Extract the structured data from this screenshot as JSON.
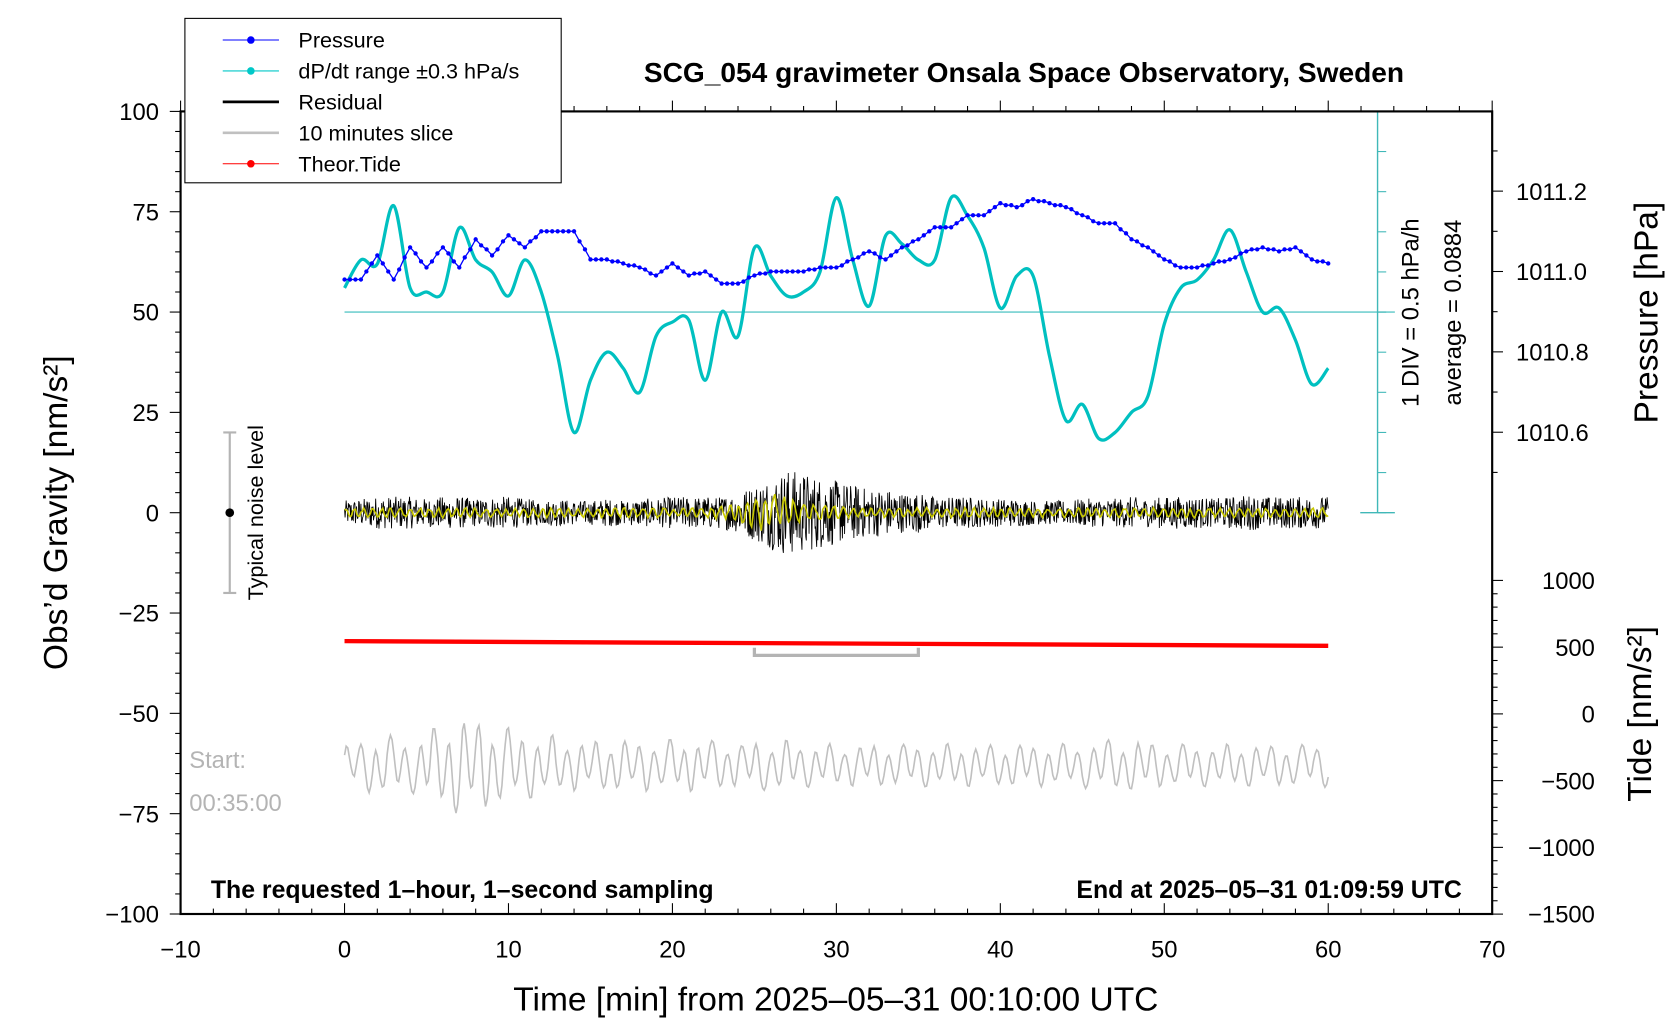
{
  "chart_data": {
    "type": "line",
    "title": "SCG_054 gravimeter Onsala Space Observatory, Sweden",
    "xlabel": "Time [min] from 2025–05–31 00:10:00 UTC",
    "ylabel_left": "Obs’d Gravity [nm/s²]",
    "ylabel_right_top": "Pressure [hPa]",
    "ylabel_right_bottom": "Tide [nm/s²]",
    "xlim": [
      -10,
      70
    ],
    "ylim_left": [
      -100,
      100
    ],
    "x_ticks": [
      -10,
      0,
      10,
      20,
      30,
      40,
      50,
      60,
      70
    ],
    "x_tick_labels": [
      "−10",
      "0",
      "10",
      "20",
      "30",
      "40",
      "50",
      "60",
      "70"
    ],
    "y_ticks_left": [
      100,
      75,
      50,
      25,
      0,
      -25,
      -50,
      -75,
      -100
    ],
    "y_tick_labels_left": [
      "100",
      "75",
      "50",
      "25",
      "0",
      "−25",
      "−50",
      "−75",
      "−100"
    ],
    "pressure_ticks": [
      1011.2,
      1011.0,
      1010.8,
      1010.6
    ],
    "pressure_tick_labels": [
      "1011.2",
      "1011.0",
      "1010.8",
      "1010.6"
    ],
    "tide_ticks": [
      1000,
      500,
      0,
      -500,
      -1000,
      -1500
    ],
    "tide_tick_labels": [
      "1000",
      "500",
      "0",
      "−500",
      "−1000",
      "−1500"
    ],
    "legend": {
      "position": "top-left",
      "entries": [
        {
          "label": "Pressure",
          "color": "#0000ff",
          "marker": true
        },
        {
          "label": "dP/dt range ±0.3 hPa/s",
          "color": "#00c8c8",
          "marker": true
        },
        {
          "label": "Residual",
          "color": "#000000",
          "marker": false
        },
        {
          "label": "10 minutes slice",
          "color": "#c0c0c0",
          "marker": false
        },
        {
          "label": "Theor.Tide",
          "color": "#ff0000",
          "marker": true
        }
      ]
    },
    "annotations": {
      "scale_div": "1 DIV = 0.5 hPa/h",
      "average": "average = 0.0884",
      "noise_level": "Typical noise level",
      "start_label": "Start:",
      "start_time": "00:35:00",
      "sampling_note": "The requested 1–hour, 1–second sampling",
      "end_note": "End at 2025–05–31 01:09:59 UTC"
    },
    "time_min": [
      0,
      1,
      2,
      3,
      4,
      5,
      6,
      7,
      8,
      9,
      10,
      11,
      12,
      13,
      14,
      15,
      16,
      17,
      18,
      19,
      20,
      21,
      22,
      23,
      24,
      25,
      26,
      27,
      28,
      29,
      30,
      31,
      32,
      33,
      34,
      35,
      36,
      37,
      38,
      39,
      40,
      41,
      42,
      43,
      44,
      45,
      46,
      47,
      48,
      49,
      50,
      51,
      52,
      53,
      54,
      55,
      56,
      57,
      58,
      59,
      60
    ],
    "series": [
      {
        "name": "Pressure",
        "units": "hPa",
        "color": "#0000ff",
        "values": [
          1010.98,
          1010.98,
          1011.04,
          1010.98,
          1011.06,
          1011.01,
          1011.06,
          1011.01,
          1011.08,
          1011.04,
          1011.09,
          1011.06,
          1011.1,
          1011.1,
          1011.1,
          1011.03,
          1011.03,
          1011.02,
          1011.01,
          1010.99,
          1011.02,
          1010.99,
          1011.0,
          1010.97,
          1010.97,
          1010.99,
          1011.0,
          1011.0,
          1011.0,
          1011.01,
          1011.01,
          1011.03,
          1011.05,
          1011.03,
          1011.06,
          1011.08,
          1011.11,
          1011.11,
          1011.14,
          1011.14,
          1011.17,
          1011.16,
          1011.18,
          1011.17,
          1011.16,
          1011.14,
          1011.12,
          1011.12,
          1011.08,
          1011.06,
          1011.03,
          1011.01,
          1011.01,
          1011.02,
          1011.03,
          1011.05,
          1011.06,
          1011.05,
          1011.06,
          1011.03,
          1011.02
        ]
      },
      {
        "name": "dP/dt",
        "units": "left-axis plot units (1 DIV = 10 = 0.5 hPa/h, 50 = average)",
        "color": "#00c8c8",
        "values": [
          56,
          63,
          62,
          76.5,
          56,
          55,
          55,
          71,
          63,
          60,
          54,
          63,
          55,
          39,
          20,
          33,
          40,
          36,
          30,
          44,
          47.5,
          48,
          33,
          50,
          44,
          66,
          59,
          54,
          55,
          60,
          78.5,
          63,
          51.5,
          69,
          67,
          63,
          63,
          78.5,
          74,
          66,
          51,
          59,
          59,
          39,
          23,
          27,
          18.5,
          20,
          25,
          29,
          47,
          56,
          58,
          63,
          70.5,
          60,
          50,
          51,
          43,
          32,
          36
        ]
      },
      {
        "name": "Residual",
        "units": "nm/s² amplitude",
        "color": "#000000",
        "values": [
          3,
          3.5,
          4,
          4,
          4,
          3.5,
          4,
          4,
          3.5,
          4,
          4,
          3.5,
          3,
          3.5,
          3,
          3,
          3.5,
          3,
          3.5,
          3.5,
          4,
          4,
          4,
          4,
          5,
          7,
          9,
          11,
          10,
          9,
          8,
          7,
          6,
          6,
          5,
          5,
          4,
          4,
          4,
          3.5,
          3.5,
          3.5,
          3,
          3,
          3,
          3.5,
          3.5,
          3.5,
          4,
          3.5,
          4,
          4,
          4,
          3.5,
          4,
          4.5,
          4,
          4,
          4,
          4,
          4
        ]
      },
      {
        "name": "Residual smoothed",
        "units": "nm/s² amplitude",
        "color": "#c8c800",
        "values": [
          1,
          1,
          1,
          1,
          1,
          1,
          1,
          1,
          1,
          1,
          1,
          1,
          1,
          1,
          1,
          1,
          1,
          1,
          1,
          1,
          1,
          1,
          1,
          1.5,
          2,
          4,
          4,
          3,
          2,
          1.5,
          1.5,
          1,
          1,
          1,
          1,
          1,
          1,
          1,
          1,
          1,
          1,
          1,
          1,
          1,
          1,
          1,
          1,
          1,
          1,
          1,
          1,
          1,
          1,
          1,
          1,
          1,
          1,
          1,
          1,
          1,
          1
        ]
      },
      {
        "name": "10 minutes slice",
        "units": "nm/s² (offset -63)",
        "color": "#c0c0c0",
        "offset": -63,
        "values": [
          5,
          6,
          7,
          7,
          6,
          8,
          10,
          12,
          11,
          10,
          9,
          8,
          7,
          7,
          6,
          6,
          6,
          6,
          6,
          6,
          6,
          6,
          6,
          6,
          5,
          6,
          6,
          6,
          5,
          5,
          5,
          5,
          5,
          5,
          5,
          5,
          5,
          5,
          5,
          5,
          5,
          5,
          5,
          5,
          5,
          5,
          6,
          6,
          6,
          6,
          5,
          5,
          5,
          5,
          5,
          5,
          5,
          5,
          5,
          5,
          5
        ],
        "window_min": [
          25,
          35
        ]
      },
      {
        "name": "Theor.Tide",
        "units": "nm/s²",
        "color": "#ff0000",
        "values_start_end": [
          545,
          510
        ]
      }
    ],
    "noise_level_bar": {
      "x": -7,
      "range": [
        -20,
        20
      ]
    },
    "grid": false
  }
}
